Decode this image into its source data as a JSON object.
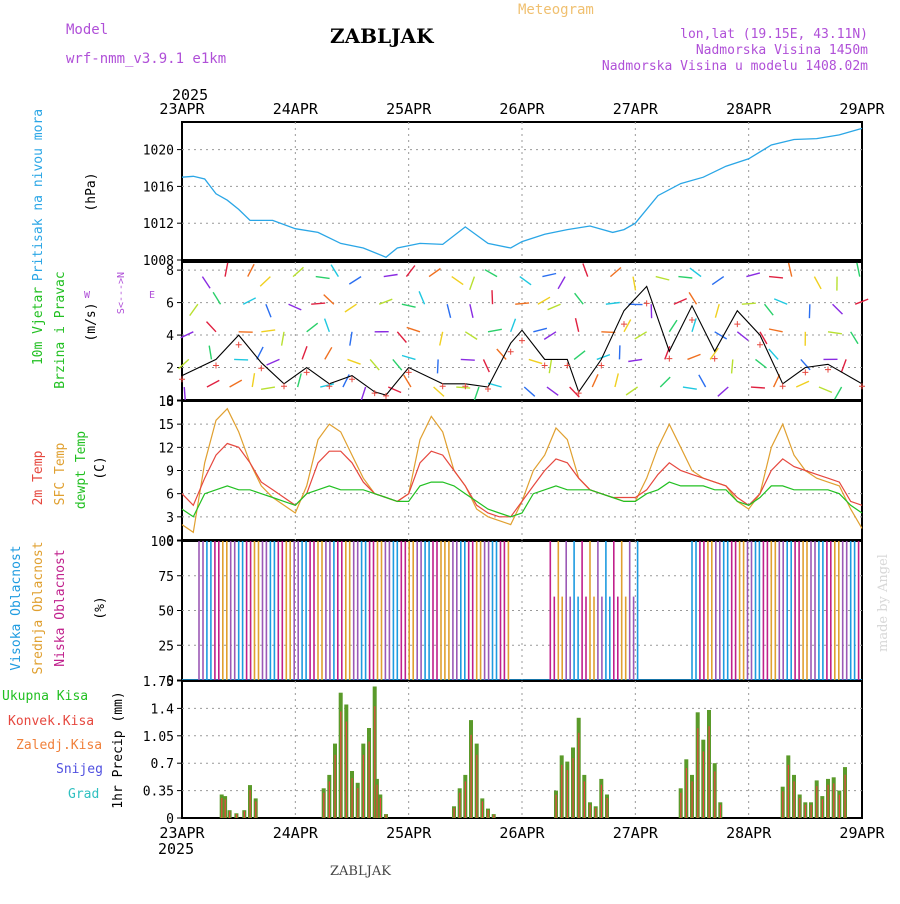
{
  "header": {
    "model_label": "Model",
    "model_name": "wrf-nmm_v3.9.1 e1km",
    "station": "ZABLJAK",
    "meteogram": "Meteogram",
    "lonlat": "lon,lat (19.15E, 43.11N)",
    "altitude": "Nadmorska Visina 1450m",
    "model_altitude": "Nadmorska Visina u modelu 1408.02m",
    "year_top": "2025",
    "year_bottom": "2025",
    "footer_station": "ZABLJAK",
    "credit": "made by Angel"
  },
  "colors": {
    "pressure": "#2aa6e6",
    "temp2m": "#e6483f",
    "sfc": "#e0a030",
    "dewpt": "#22c022",
    "cloud_high": "#1e9be0",
    "cloud_mid": "#e0a030",
    "cloud_low": "#c0208c",
    "precip_total": "#5a9a2a",
    "precip_conv": "#e6483f",
    "label_purple": "#b050d8",
    "label_orange": "#f0c070"
  },
  "axis": {
    "x_ticks": [
      "23APR",
      "24APR",
      "25APR",
      "26APR",
      "27APR",
      "28APR",
      "29APR"
    ]
  },
  "chart_data": [
    {
      "type": "line",
      "name": "pressure",
      "ylabel": "Pritisak na nivou mora",
      "unit": "(hPa)",
      "ylim": [
        1008,
        1023
      ],
      "yticks": [
        "1008",
        "1012",
        "1016",
        "1020"
      ],
      "x_days": [
        0,
        0.1,
        0.2,
        0.3,
        0.4,
        0.5,
        0.6,
        0.8,
        1,
        1.2,
        1.4,
        1.6,
        1.8,
        1.9,
        2.1,
        2.3,
        2.5,
        2.7,
        2.9,
        3,
        3.2,
        3.4,
        3.6,
        3.8,
        3.9,
        4,
        4.2,
        4.4,
        4.6,
        4.8,
        5,
        5.2,
        5.4,
        5.6,
        5.8,
        6
      ],
      "values": [
        1017,
        1017.1,
        1016.8,
        1015.2,
        1014.5,
        1013.5,
        1012.3,
        1012.3,
        1011.4,
        1011,
        1009.8,
        1009.3,
        1008.3,
        1009.3,
        1009.8,
        1009.7,
        1011.6,
        1009.8,
        1009.3,
        1010,
        1010.8,
        1011.3,
        1011.7,
        1011,
        1011.3,
        1012,
        1015,
        1016.3,
        1017,
        1018.2,
        1019,
        1020.5,
        1021.1,
        1021.2,
        1021.6,
        1022.3
      ]
    },
    {
      "type": "line",
      "name": "wind",
      "ylabel": "10m Vjetar",
      "ylabel2": "Brzina i Pravac",
      "unit": "(m/s)",
      "compass_ns": "S<--->N",
      "compass_w": "W",
      "compass_e": "E",
      "ylim": [
        0,
        8.5
      ],
      "yticks": [
        "0",
        "2",
        "4",
        "6",
        "8"
      ],
      "x_days": [
        0,
        0.3,
        0.5,
        0.7,
        0.9,
        1.1,
        1.3,
        1.5,
        1.7,
        1.8,
        2,
        2.3,
        2.5,
        2.7,
        2.9,
        3,
        3.2,
        3.4,
        3.5,
        3.7,
        3.9,
        4.1,
        4.3,
        4.5,
        4.7,
        4.9,
        5.1,
        5.3,
        5.5,
        5.7,
        6
      ],
      "values": [
        1.5,
        2.5,
        4,
        2.3,
        1,
        2,
        1,
        1.5,
        0.5,
        0.3,
        2,
        1,
        1,
        0.8,
        3.5,
        4.3,
        2.5,
        2.5,
        0.5,
        2.5,
        5.5,
        7,
        3,
        5.8,
        3,
        5.5,
        4,
        1,
        2,
        2.2,
        1
      ]
    },
    {
      "type": "line",
      "name": "temperature",
      "ylabel1": "2m Temp",
      "ylabel2": "SFC Temp",
      "ylabel3": "dewpt Temp",
      "unit": "(C)",
      "ylim": [
        0,
        18
      ],
      "yticks": [
        "0",
        "3",
        "6",
        "9",
        "12",
        "15",
        "18"
      ],
      "x_days": [
        0,
        0.1,
        0.2,
        0.3,
        0.4,
        0.5,
        0.6,
        0.7,
        0.8,
        0.9,
        1,
        1.1,
        1.2,
        1.3,
        1.4,
        1.5,
        1.6,
        1.7,
        1.8,
        1.9,
        2,
        2.1,
        2.2,
        2.3,
        2.4,
        2.5,
        2.6,
        2.7,
        2.8,
        2.9,
        3,
        3.1,
        3.2,
        3.3,
        3.4,
        3.5,
        3.6,
        3.7,
        3.8,
        3.9,
        4,
        4.1,
        4.2,
        4.3,
        4.4,
        4.5,
        4.6,
        4.7,
        4.8,
        4.9,
        5,
        5.1,
        5.2,
        5.3,
        5.4,
        5.5,
        5.6,
        5.7,
        5.8,
        5.9,
        6
      ],
      "series": [
        {
          "name": "2m Temp",
          "values": [
            6,
            4.5,
            8,
            11,
            12.5,
            12,
            10,
            7.5,
            6.5,
            5.5,
            4.5,
            6,
            10,
            11.5,
            11.5,
            10,
            7.5,
            6,
            5.5,
            5,
            6,
            10,
            11.5,
            11,
            9,
            7,
            4.5,
            3.5,
            3,
            3,
            5,
            7,
            9,
            10.5,
            10,
            8,
            6.5,
            6,
            5.5,
            5.5,
            5.5,
            6.5,
            8.5,
            10,
            9,
            8.5,
            8,
            7.5,
            7,
            5.5,
            4.5,
            6,
            9,
            10.5,
            9.5,
            9,
            8.5,
            8,
            7.5,
            5,
            4.5
          ]
        },
        {
          "name": "SFC Temp",
          "values": [
            2,
            1,
            10,
            15.5,
            17,
            14,
            10,
            7,
            5.5,
            4.5,
            3.5,
            7,
            13,
            15,
            14,
            11,
            8,
            6,
            5.5,
            5,
            6,
            13,
            16,
            14,
            9,
            7,
            4,
            3,
            2.5,
            2,
            5,
            9,
            11,
            14.5,
            13,
            8,
            6.5,
            6,
            5.5,
            5,
            5,
            8,
            12,
            15,
            12,
            9,
            8,
            7.5,
            7,
            5,
            4,
            6,
            12,
            15,
            11,
            9,
            8,
            7.5,
            7,
            4,
            1.5
          ]
        },
        {
          "name": "dewpt Temp",
          "values": [
            4,
            3,
            6,
            6.5,
            7,
            6.5,
            6.5,
            6,
            5.5,
            5,
            4.5,
            6,
            6.5,
            7,
            6.5,
            6.5,
            6.5,
            6,
            5.5,
            5,
            5,
            7,
            7.5,
            7.5,
            7,
            6,
            5,
            4,
            3.5,
            3,
            3.5,
            6,
            6.5,
            7,
            6.5,
            6.5,
            6.5,
            6,
            5.5,
            5,
            5,
            6,
            6.5,
            7.5,
            7,
            7,
            7,
            6.5,
            6.5,
            5,
            4.5,
            5.5,
            7,
            7,
            6.5,
            6.5,
            6.5,
            6.5,
            6,
            4.5,
            3.5
          ]
        }
      ]
    },
    {
      "type": "bar",
      "name": "cloudiness",
      "ylabel1": "Visoka Oblacnost",
      "ylabel2": "Srednja Oblacnost",
      "ylabel3": "Niska Oblacnost",
      "unit": "(%)",
      "ylim": [
        0,
        100
      ],
      "yticks": [
        "0",
        "25",
        "50",
        "75",
        "100"
      ],
      "segments": [
        {
          "from": 0.15,
          "to": 2.9,
          "level": 100
        },
        {
          "from": 3.25,
          "to": 4.05,
          "level": 100
        },
        {
          "from": 4.5,
          "to": 6.0,
          "level": 100
        }
      ]
    },
    {
      "type": "bar",
      "name": "precipitation",
      "legend": [
        "Ukupna Kisa",
        "Konvek.Kisa",
        "Zaledj.Kisa",
        "Snijeg",
        "Grad"
      ],
      "unit": "1hr Precip (mm)",
      "ylim": [
        0,
        1.75
      ],
      "yticks": [
        "0",
        "0.35",
        "0.7",
        "1.05",
        "1.4",
        "1.75"
      ],
      "x_days": [
        0.35,
        0.38,
        0.42,
        0.48,
        0.55,
        0.6,
        0.65,
        1.25,
        1.3,
        1.35,
        1.4,
        1.45,
        1.5,
        1.55,
        1.6,
        1.65,
        1.7,
        1.72,
        1.75,
        1.8,
        2.4,
        2.45,
        2.5,
        2.55,
        2.6,
        2.65,
        2.7,
        2.75,
        3.3,
        3.35,
        3.4,
        3.45,
        3.5,
        3.55,
        3.6,
        3.65,
        3.7,
        3.75,
        4.4,
        4.45,
        4.5,
        4.55,
        4.6,
        4.65,
        4.7,
        4.75,
        5.3,
        5.35,
        5.4,
        5.45,
        5.5,
        5.55,
        5.6,
        5.65,
        5.7,
        5.75,
        5.8,
        5.85
      ],
      "values": [
        0.3,
        0.28,
        0.1,
        0.06,
        0.1,
        0.42,
        0.25,
        0.38,
        0.55,
        0.95,
        1.6,
        1.45,
        0.6,
        0.45,
        0.95,
        1.15,
        1.68,
        0.5,
        0.3,
        0.05,
        0.15,
        0.38,
        0.55,
        1.25,
        0.95,
        0.25,
        0.12,
        0.05,
        0.35,
        0.8,
        0.72,
        0.9,
        1.28,
        0.55,
        0.2,
        0.15,
        0.5,
        0.3,
        0.38,
        0.75,
        0.55,
        1.35,
        1.0,
        1.38,
        0.7,
        0.2,
        0.4,
        0.8,
        0.55,
        0.3,
        0.2,
        0.2,
        0.48,
        0.28,
        0.5,
        0.52,
        0.35,
        0.65
      ]
    }
  ]
}
